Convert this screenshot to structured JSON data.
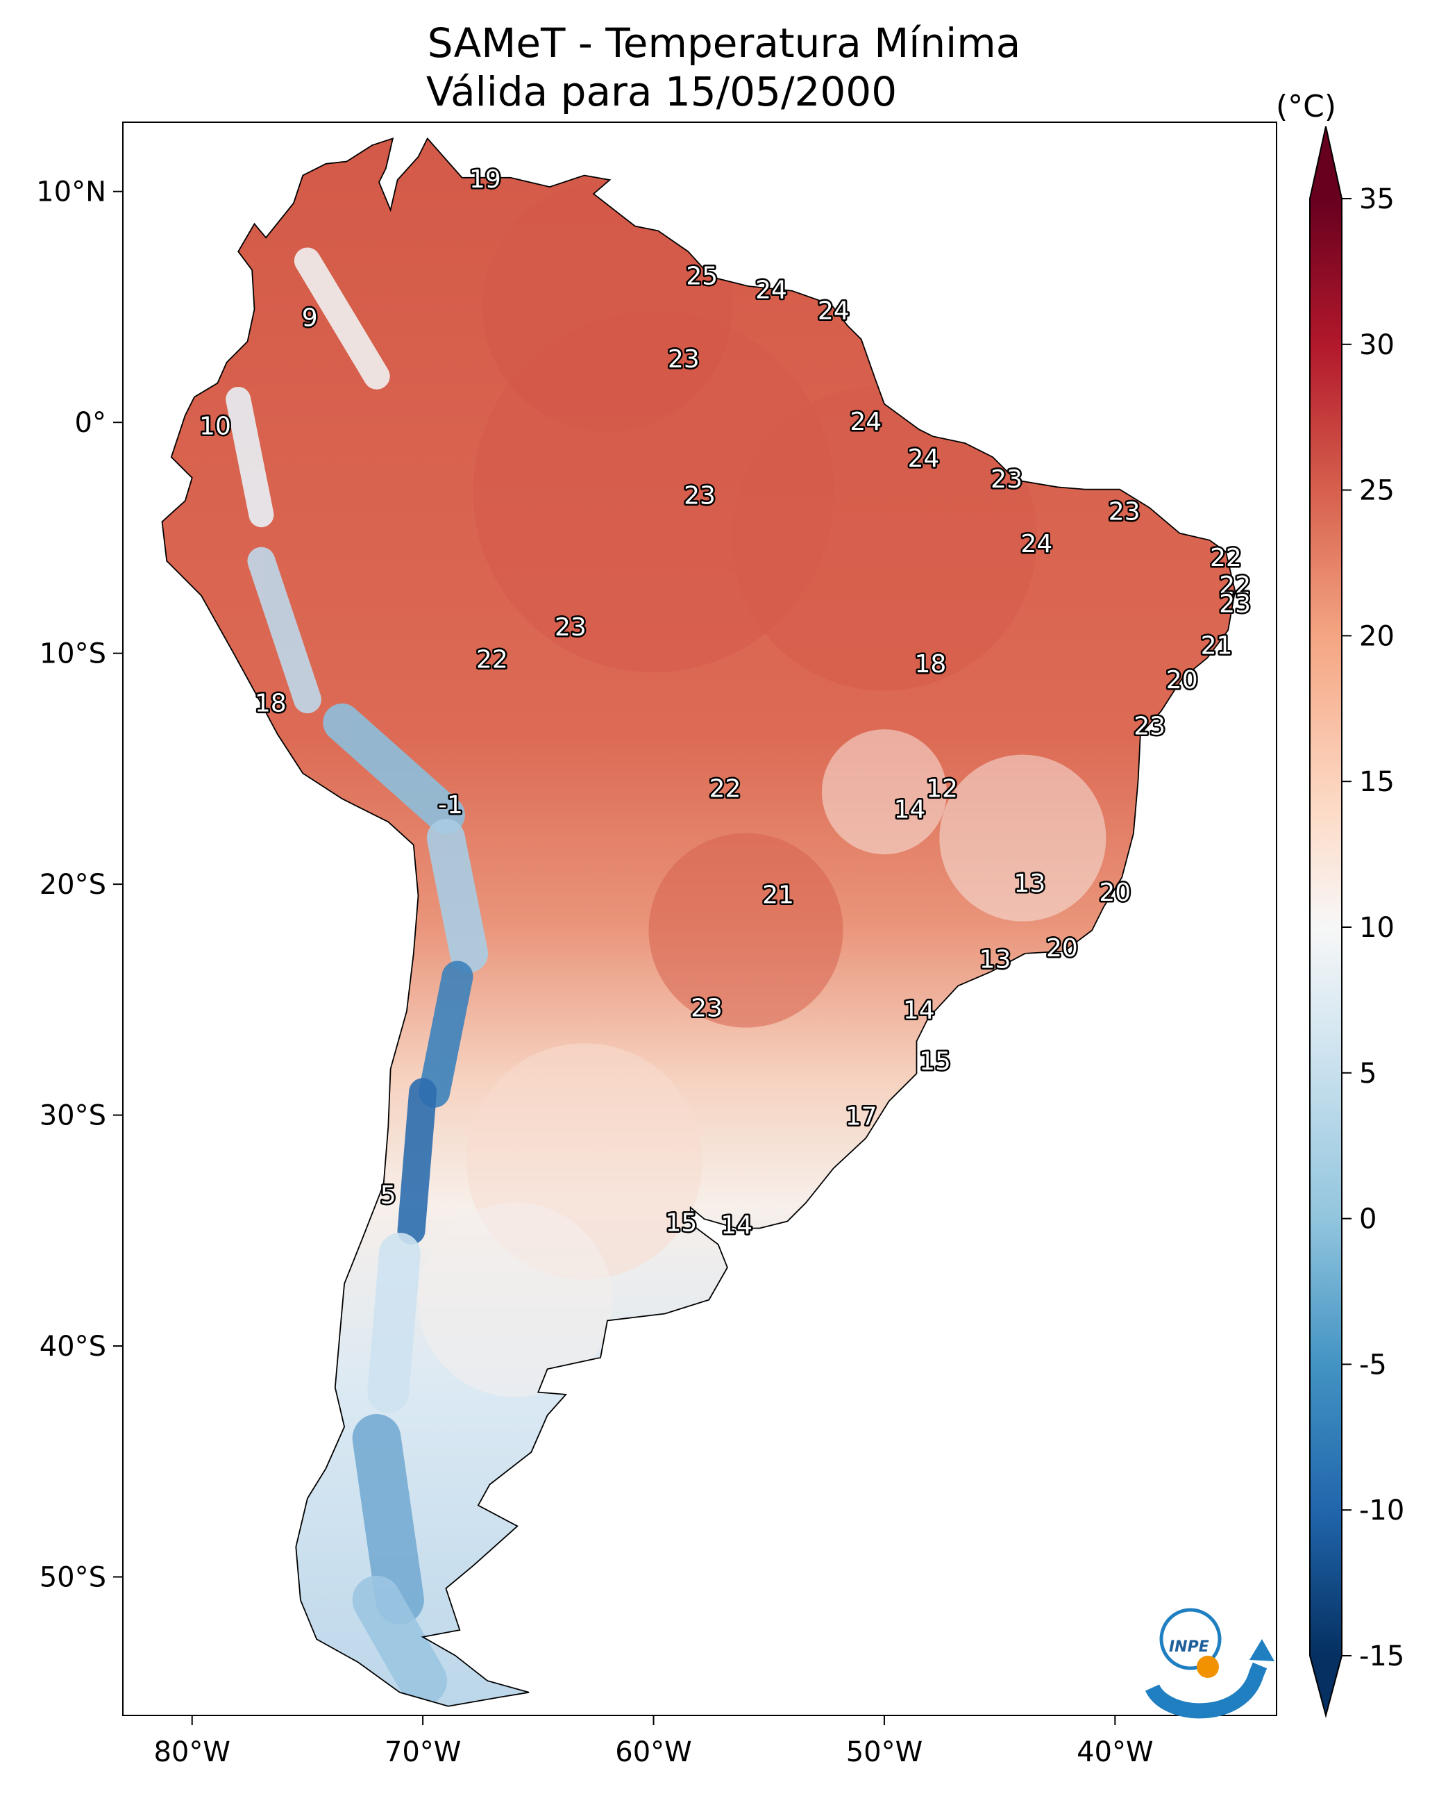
{
  "title": {
    "line1": "SAMeT - Temperatura Mínima",
    "line2": "Válida para 15/05/2000"
  },
  "colorbar": {
    "unit": "(°C)",
    "ticks": [
      "35",
      "30",
      "25",
      "20",
      "15",
      "10",
      "5",
      "0",
      "-5",
      "-10",
      "-15"
    ],
    "range": [
      -15,
      35
    ],
    "extend": "both",
    "colormap": "RdBu_r",
    "colors": {
      "max": "#67001f",
      "high": "#d6604d",
      "mid": "#f7f7f7",
      "low": "#4393c3",
      "min": "#053061"
    }
  },
  "axes": {
    "lon_ticks": [
      "80°W",
      "70°W",
      "60°W",
      "50°W",
      "40°W"
    ],
    "lat_ticks": [
      "10°N",
      "0°",
      "10°S",
      "20°S",
      "30°S",
      "40°S",
      "50°S"
    ],
    "lon_range": [
      -83,
      -33
    ],
    "lat_range": [
      -56,
      13
    ]
  },
  "map_labels": [
    {
      "lon": -67.3,
      "lat": 10.6,
      "value": "19"
    },
    {
      "lon": -57.9,
      "lat": 6.4,
      "value": "25"
    },
    {
      "lon": -54.9,
      "lat": 5.8,
      "value": "24"
    },
    {
      "lon": -52.2,
      "lat": 4.9,
      "value": "24"
    },
    {
      "lon": -74.9,
      "lat": 4.6,
      "value": "9"
    },
    {
      "lon": -58.7,
      "lat": 2.8,
      "value": "23"
    },
    {
      "lon": -50.8,
      "lat": 0.1,
      "value": "24"
    },
    {
      "lon": -79.0,
      "lat": -0.1,
      "value": "10"
    },
    {
      "lon": -48.3,
      "lat": -1.5,
      "value": "24"
    },
    {
      "lon": -58.0,
      "lat": -3.1,
      "value": "23"
    },
    {
      "lon": -44.7,
      "lat": -2.4,
      "value": "23"
    },
    {
      "lon": -39.6,
      "lat": -3.8,
      "value": "23"
    },
    {
      "lon": -43.4,
      "lat": -5.2,
      "value": "24"
    },
    {
      "lon": -35.2,
      "lat": -5.8,
      "value": "22"
    },
    {
      "lon": -34.8,
      "lat": -7.0,
      "value": "22"
    },
    {
      "lon": -34.8,
      "lat": -7.8,
      "value": "23"
    },
    {
      "lon": -63.6,
      "lat": -8.8,
      "value": "23"
    },
    {
      "lon": -35.6,
      "lat": -9.6,
      "value": "21"
    },
    {
      "lon": -67.0,
      "lat": -10.2,
      "value": "22"
    },
    {
      "lon": -48.0,
      "lat": -10.4,
      "value": "18"
    },
    {
      "lon": -37.1,
      "lat": -11.1,
      "value": "20"
    },
    {
      "lon": -76.6,
      "lat": -12.1,
      "value": "18"
    },
    {
      "lon": -38.5,
      "lat": -13.1,
      "value": "23"
    },
    {
      "lon": -47.5,
      "lat": -15.8,
      "value": "12"
    },
    {
      "lon": -56.9,
      "lat": -15.8,
      "value": "22"
    },
    {
      "lon": -48.9,
      "lat": -16.7,
      "value": "14"
    },
    {
      "lon": -68.8,
      "lat": -16.5,
      "value": "-1"
    },
    {
      "lon": -43.7,
      "lat": -19.9,
      "value": "13"
    },
    {
      "lon": -54.6,
      "lat": -20.4,
      "value": "21"
    },
    {
      "lon": -40.0,
      "lat": -20.3,
      "value": "20"
    },
    {
      "lon": -42.3,
      "lat": -22.7,
      "value": "20"
    },
    {
      "lon": -45.2,
      "lat": -23.2,
      "value": "13"
    },
    {
      "lon": -57.7,
      "lat": -25.3,
      "value": "23"
    },
    {
      "lon": -48.5,
      "lat": -25.4,
      "value": "14"
    },
    {
      "lon": -47.8,
      "lat": -27.6,
      "value": "15"
    },
    {
      "lon": -51.0,
      "lat": -30.0,
      "value": "17"
    },
    {
      "lon": -71.5,
      "lat": -33.4,
      "value": "5"
    },
    {
      "lon": -58.8,
      "lat": -34.6,
      "value": "15"
    },
    {
      "lon": -56.4,
      "lat": -34.7,
      "value": "14"
    }
  ],
  "logo": {
    "text": "INPE"
  }
}
